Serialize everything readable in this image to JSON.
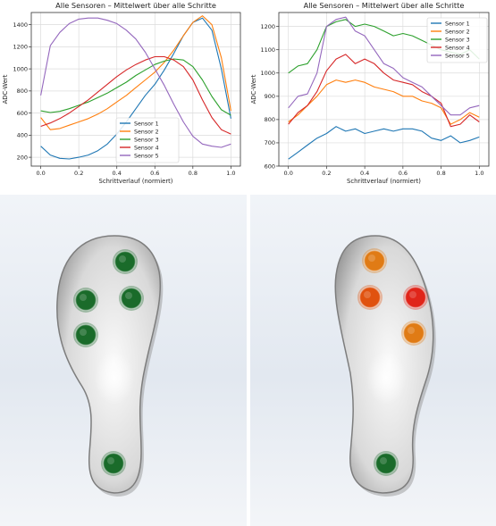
{
  "chart_data": [
    {
      "type": "line",
      "title": "Alle Sensoren – Mittelwert über alle Schritte",
      "xlabel": "Schrittverlauf (normiert)",
      "ylabel": "ADC-Wert",
      "xlim": [
        -0.05,
        1.05
      ],
      "ylim": [
        120,
        1510
      ],
      "xticks": [
        "0.0",
        "0.2",
        "0.4",
        "0.6",
        "0.8",
        "1.0"
      ],
      "yticks": [
        "200",
        "400",
        "600",
        "800",
        "1000",
        "1200",
        "1400"
      ],
      "grid": true,
      "legend_position": "lower-center",
      "x": [
        0,
        0.05,
        0.1,
        0.15,
        0.2,
        0.25,
        0.3,
        0.35,
        0.4,
        0.45,
        0.5,
        0.55,
        0.6,
        0.65,
        0.7,
        0.75,
        0.8,
        0.85,
        0.9,
        0.95,
        1.0
      ],
      "series": [
        {
          "name": "Sensor 1",
          "color": "#1f77b4",
          "values": [
            300,
            220,
            190,
            185,
            200,
            220,
            260,
            320,
            410,
            520,
            640,
            760,
            860,
            990,
            1140,
            1300,
            1420,
            1460,
            1350,
            1000,
            550
          ]
        },
        {
          "name": "Sensor 2",
          "color": "#ff7f0e",
          "values": [
            560,
            450,
            460,
            490,
            520,
            550,
            590,
            640,
            700,
            760,
            830,
            900,
            970,
            1060,
            1170,
            1300,
            1420,
            1480,
            1400,
            1100,
            620
          ]
        },
        {
          "name": "Sensor 3",
          "color": "#2ca02c",
          "values": [
            620,
            605,
            615,
            640,
            670,
            700,
            740,
            780,
            830,
            880,
            940,
            990,
            1040,
            1070,
            1090,
            1080,
            1020,
            900,
            750,
            630,
            580
          ]
        },
        {
          "name": "Sensor 4",
          "color": "#d62728",
          "values": [
            480,
            510,
            550,
            600,
            660,
            720,
            790,
            860,
            930,
            990,
            1040,
            1080,
            1110,
            1110,
            1080,
            1020,
            900,
            720,
            560,
            450,
            410
          ]
        },
        {
          "name": "Sensor 5",
          "color": "#9467bd",
          "values": [
            760,
            1210,
            1330,
            1410,
            1450,
            1460,
            1460,
            1440,
            1410,
            1350,
            1270,
            1150,
            1000,
            850,
            680,
            520,
            390,
            320,
            300,
            290,
            320
          ]
        }
      ]
    },
    {
      "type": "line",
      "title": "Alle Sensoren – Mittelwert über alle Schritte",
      "xlabel": "Schrittverlauf (normiert)",
      "ylabel": "ADC-Wert",
      "xlim": [
        -0.05,
        1.05
      ],
      "ylim": [
        600,
        1260
      ],
      "xticks": [
        "0.0",
        "0.2",
        "0.4",
        "0.6",
        "0.8",
        "1.0"
      ],
      "yticks": [
        "600",
        "700",
        "800",
        "900",
        "1000",
        "1100",
        "1200"
      ],
      "grid": true,
      "legend_position": "top-right",
      "x": [
        0,
        0.05,
        0.1,
        0.15,
        0.2,
        0.25,
        0.3,
        0.35,
        0.4,
        0.45,
        0.5,
        0.55,
        0.6,
        0.65,
        0.7,
        0.75,
        0.8,
        0.85,
        0.9,
        0.95,
        1.0
      ],
      "series": [
        {
          "name": "Sensor 1",
          "color": "#1f77b4",
          "values": [
            630,
            660,
            690,
            720,
            740,
            770,
            750,
            760,
            740,
            750,
            760,
            750,
            760,
            760,
            750,
            720,
            710,
            730,
            700,
            710,
            725
          ]
        },
        {
          "name": "Sensor 2",
          "color": "#ff7f0e",
          "values": [
            790,
            820,
            860,
            900,
            950,
            970,
            960,
            970,
            960,
            940,
            930,
            920,
            900,
            900,
            880,
            870,
            850,
            780,
            800,
            830,
            810
          ]
        },
        {
          "name": "Sensor 3",
          "color": "#2ca02c",
          "values": [
            1000,
            1030,
            1040,
            1100,
            1200,
            1220,
            1230,
            1200,
            1210,
            1200,
            1180,
            1160,
            1170,
            1160,
            1140,
            1120,
            1100,
            1090,
            1080,
            1100,
            1060
          ]
        },
        {
          "name": "Sensor 4",
          "color": "#d62728",
          "values": [
            780,
            830,
            860,
            920,
            1010,
            1060,
            1080,
            1040,
            1060,
            1040,
            1000,
            970,
            960,
            950,
            920,
            900,
            870,
            770,
            780,
            820,
            790
          ]
        },
        {
          "name": "Sensor 5",
          "color": "#9467bd",
          "values": [
            850,
            900,
            910,
            1000,
            1200,
            1230,
            1240,
            1180,
            1160,
            1100,
            1040,
            1020,
            980,
            960,
            940,
            900,
            860,
            820,
            820,
            850,
            860
          ]
        }
      ]
    }
  ],
  "insoles": {
    "left": {
      "sensors": [
        {
          "name": "sensor-hallux",
          "color": "#1a6b2a"
        },
        {
          "name": "sensor-medial-forefoot",
          "color": "#1a6b2a"
        },
        {
          "name": "sensor-lateral-forefoot",
          "color": "#1a6b2a"
        },
        {
          "name": "sensor-midfoot",
          "color": "#1a6b2a"
        },
        {
          "name": "sensor-heel",
          "color": "#1a6b2a"
        }
      ]
    },
    "right": {
      "sensors": [
        {
          "name": "sensor-hallux",
          "color": "#e07b15"
        },
        {
          "name": "sensor-medial-forefoot",
          "color": "#e0520f"
        },
        {
          "name": "sensor-lateral-forefoot",
          "color": "#e0251a"
        },
        {
          "name": "sensor-midfoot",
          "color": "#e07b15"
        },
        {
          "name": "sensor-heel",
          "color": "#1a6b2a"
        }
      ]
    }
  }
}
